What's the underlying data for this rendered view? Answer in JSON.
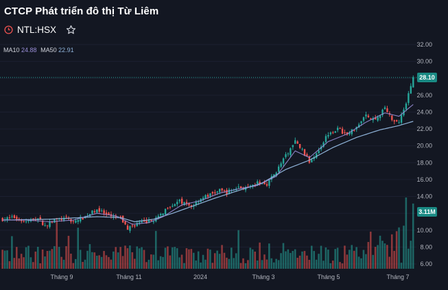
{
  "header": {
    "title": "CTCP Phát triển đô thị Từ Liêm",
    "ticker": "NTL:HSX",
    "ma10_label": "MA10",
    "ma10_value": "24.88",
    "ma50_label": "MA50",
    "ma50_value": "22.91"
  },
  "colors": {
    "background": "#131722",
    "up": "#26a69a",
    "down": "#ef5350",
    "ma10": "#9a8fd8",
    "ma50": "#8fb3d9",
    "price_tag": "#1a8a84"
  },
  "chart_data": {
    "type": "candlestick",
    "title": "NTL:HSX",
    "y_axis_ticks": [
      "32.00",
      "30.00",
      "28.00",
      "26.00",
      "24.00",
      "22.00",
      "20.00",
      "18.00",
      "16.00",
      "14.00",
      "12.00",
      "10.00",
      "8.00",
      "6.00"
    ],
    "ylim": [
      5.5,
      32.5
    ],
    "x_axis_ticks": [
      "Tháng 9",
      "Tháng 11",
      "2024",
      "Tháng 3",
      "Tháng 5",
      "Tháng 7"
    ],
    "last_price_label": "28.10",
    "last_price": 28.1,
    "volume_label": "3.11M",
    "close_path": [
      [
        0,
        11.3
      ],
      [
        5,
        11.5
      ],
      [
        10,
        11.0
      ],
      [
        15,
        11.4
      ],
      [
        18,
        10.5
      ],
      [
        22,
        11.2
      ],
      [
        27,
        11.4
      ],
      [
        30,
        11.0
      ],
      [
        35,
        11.6
      ],
      [
        40,
        12.5
      ],
      [
        45,
        11.6
      ],
      [
        50,
        11.4
      ],
      [
        53,
        10.2
      ],
      [
        57,
        10.8
      ],
      [
        62,
        11.0
      ],
      [
        66,
        11.5
      ],
      [
        70,
        12.8
      ],
      [
        75,
        13.4
      ],
      [
        80,
        12.8
      ],
      [
        84,
        13.8
      ],
      [
        88,
        14.2
      ],
      [
        92,
        14.7
      ],
      [
        95,
        14.5
      ],
      [
        100,
        15.1
      ],
      [
        104,
        14.9
      ],
      [
        108,
        15.6
      ],
      [
        112,
        15.5
      ],
      [
        116,
        17.0
      ],
      [
        120,
        18.8
      ],
      [
        124,
        20.5
      ],
      [
        127,
        19.5
      ],
      [
        130,
        18.1
      ],
      [
        134,
        19.6
      ],
      [
        138,
        21.5
      ],
      [
        142,
        22.0
      ],
      [
        146,
        21.3
      ],
      [
        150,
        22.3
      ],
      [
        154,
        23.5
      ],
      [
        158,
        23.0
      ],
      [
        162,
        24.5
      ],
      [
        165,
        23.2
      ],
      [
        168,
        22.9
      ],
      [
        171,
        25.0
      ],
      [
        174,
        28.1
      ]
    ],
    "ma10": [
      [
        0,
        11.2
      ],
      [
        10,
        11.2
      ],
      [
        20,
        11.0
      ],
      [
        30,
        11.2
      ],
      [
        40,
        12.0
      ],
      [
        48,
        11.7
      ],
      [
        55,
        10.7
      ],
      [
        62,
        10.9
      ],
      [
        68,
        11.6
      ],
      [
        76,
        13.0
      ],
      [
        84,
        13.5
      ],
      [
        92,
        14.4
      ],
      [
        100,
        14.9
      ],
      [
        108,
        15.3
      ],
      [
        116,
        16.4
      ],
      [
        124,
        19.4
      ],
      [
        130,
        18.6
      ],
      [
        138,
        20.5
      ],
      [
        146,
        21.4
      ],
      [
        154,
        22.8
      ],
      [
        162,
        23.9
      ],
      [
        168,
        23.5
      ],
      [
        174,
        24.9
      ]
    ],
    "ma50": [
      [
        0,
        11.2
      ],
      [
        20,
        11.3
      ],
      [
        40,
        11.6
      ],
      [
        50,
        11.5
      ],
      [
        56,
        11.0
      ],
      [
        64,
        11.3
      ],
      [
        72,
        12.0
      ],
      [
        80,
        12.8
      ],
      [
        90,
        13.8
      ],
      [
        100,
        14.7
      ],
      [
        110,
        15.6
      ],
      [
        120,
        17.2
      ],
      [
        130,
        18.3
      ],
      [
        140,
        19.8
      ],
      [
        150,
        21.0
      ],
      [
        160,
        21.9
      ],
      [
        168,
        22.4
      ],
      [
        174,
        22.9
      ]
    ],
    "volume_scale_max": 3.11,
    "volume_note": "volume bars in millions of shares (approximate)"
  }
}
